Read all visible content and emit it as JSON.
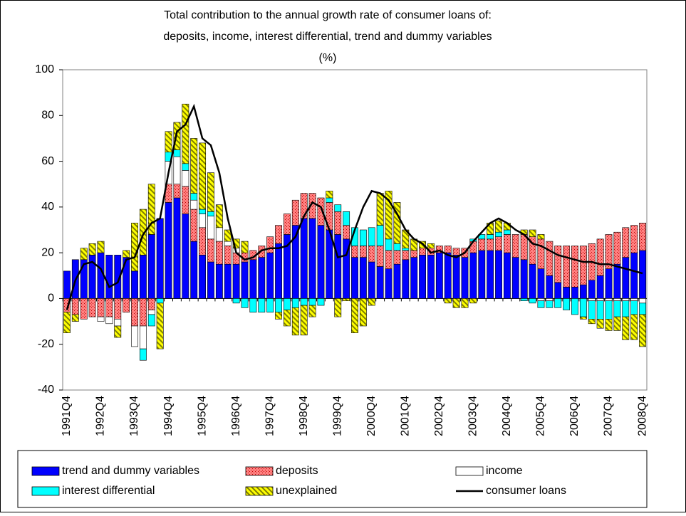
{
  "chart_data": {
    "type": "bar",
    "stacked": true,
    "title": [
      "Total contribution to the annual growth rate of consumer loans of:",
      "deposits, income, interest differential, trend and dummy variables",
      "(%)"
    ],
    "categories": [
      "1991Q4",
      null,
      null,
      null,
      "1992Q4",
      null,
      null,
      null,
      "1993Q4",
      null,
      null,
      null,
      "1994Q4",
      null,
      null,
      null,
      "1995Q4",
      null,
      null,
      null,
      "1996Q4",
      null,
      null,
      null,
      "1997Q4",
      null,
      null,
      null,
      "1998Q4",
      null,
      null,
      null,
      "1999Q4",
      null,
      null,
      null,
      "2000Q4",
      null,
      null,
      null,
      "2001Q4",
      null,
      null,
      null,
      "2002Q4",
      null,
      null,
      null,
      "2003Q4",
      null,
      null,
      null,
      "2004Q4",
      null,
      null,
      null,
      "2005Q4",
      null,
      null,
      null,
      "2006Q4",
      null,
      null,
      null,
      "2007Q4",
      null,
      null,
      null,
      "2008Q4"
    ],
    "ylim": [
      -40,
      100
    ],
    "yticks": [
      -40,
      -20,
      0,
      20,
      40,
      60,
      80,
      100
    ],
    "grid": false,
    "series": [
      {
        "name": "trend and dummy variables",
        "color": "#0000ff",
        "pattern": "solid",
        "values": [
          12,
          17,
          17,
          19,
          20,
          19,
          19,
          18,
          12,
          19,
          28,
          35,
          42,
          44,
          37,
          25,
          19,
          16,
          15,
          15,
          15,
          16,
          17,
          18,
          20,
          24,
          28,
          32,
          35,
          35,
          32,
          30,
          28,
          26,
          18,
          18,
          16,
          14,
          13,
          15,
          17,
          18,
          19,
          19,
          20,
          20,
          19,
          18,
          20,
          21,
          21,
          21,
          20,
          18,
          17,
          15,
          13,
          10,
          7,
          5,
          5,
          6,
          8,
          10,
          13,
          15,
          18,
          20,
          21
        ]
      },
      {
        "name": "deposits",
        "color": "#ff8080",
        "pattern": "dots",
        "values": [
          -6,
          -7,
          -9,
          -8,
          -8,
          -8,
          -9,
          -6,
          -12,
          -12,
          -5,
          0,
          8,
          6,
          12,
          14,
          12,
          10,
          10,
          8,
          5,
          4,
          4,
          5,
          7,
          8,
          9,
          11,
          11,
          11,
          12,
          12,
          10,
          6,
          5,
          5,
          7,
          9,
          8,
          6,
          4,
          3,
          3,
          3,
          3,
          3,
          3,
          4,
          5,
          5,
          5,
          6,
          8,
          10,
          11,
          12,
          13,
          15,
          16,
          18,
          18,
          17,
          16,
          16,
          15,
          14,
          13,
          12,
          12
        ]
      },
      {
        "name": "income",
        "color": "#ffffff",
        "pattern": "solid",
        "values": [
          0,
          0,
          0,
          0,
          -2,
          -3,
          -3,
          0,
          -9,
          -10,
          -2,
          0,
          10,
          12,
          7,
          4,
          6,
          10,
          6,
          2,
          2,
          0,
          0,
          0,
          0,
          0,
          0,
          0,
          0,
          0,
          0,
          0,
          0,
          0,
          0,
          0,
          0,
          0,
          0,
          0,
          0,
          0,
          0,
          0,
          0,
          0,
          0,
          0,
          0,
          0,
          0,
          0,
          0,
          0,
          0,
          0,
          -1,
          -1,
          0,
          0,
          0,
          0,
          -1,
          -1,
          -1,
          -1,
          -1,
          -1,
          -2
        ]
      },
      {
        "name": "interest differential",
        "color": "#00ffff",
        "pattern": "solid",
        "values": [
          0,
          0,
          0,
          0,
          0,
          0,
          0,
          0,
          0,
          -5,
          -5,
          -2,
          4,
          3,
          3,
          3,
          2,
          2,
          0,
          0,
          -2,
          -4,
          -6,
          -6,
          -6,
          -6,
          -5,
          -4,
          -3,
          -3,
          -3,
          2,
          3,
          6,
          8,
          7,
          8,
          9,
          5,
          3,
          1,
          0,
          0,
          0,
          0,
          0,
          0,
          0,
          1,
          2,
          2,
          2,
          2,
          0,
          -1,
          -2,
          -3,
          -3,
          -4,
          -5,
          -7,
          -8,
          -8,
          -8,
          -8,
          -7,
          -7,
          -6,
          -5
        ]
      },
      {
        "name": "unexplained",
        "color": "#ffff00",
        "pattern": "hatch",
        "values": [
          -9,
          -3,
          5,
          5,
          5,
          0,
          -5,
          3,
          21,
          20,
          22,
          -20,
          9,
          12,
          26,
          24,
          29,
          17,
          10,
          5,
          4,
          5,
          0,
          0,
          0,
          -3,
          -7,
          -12,
          -13,
          -5,
          0,
          3,
          -8,
          -1,
          -15,
          -12,
          -3,
          14,
          21,
          18,
          8,
          5,
          3,
          2,
          0,
          -2,
          -4,
          -4,
          -2,
          0,
          5,
          5,
          3,
          0,
          2,
          3,
          2,
          0,
          0,
          0,
          0,
          -1,
          -2,
          -4,
          -5,
          -6,
          -10,
          -11,
          -14
        ]
      },
      {
        "name": "consumer loans",
        "color": "#000000",
        "type": "line",
        "values": [
          -5,
          8,
          15,
          16,
          13,
          5,
          7,
          17,
          18,
          28,
          33,
          35,
          55,
          73,
          76,
          84,
          70,
          67,
          55,
          35,
          20,
          17,
          18,
          21,
          22,
          22,
          23,
          27,
          36,
          42,
          40,
          30,
          18,
          19,
          30,
          40,
          47,
          46,
          43,
          37,
          30,
          26,
          24,
          20,
          21,
          19,
          18,
          20,
          25,
          29,
          33,
          35,
          33,
          30,
          28,
          24,
          23,
          21,
          19,
          18,
          17,
          16,
          16,
          15,
          15,
          14,
          13,
          12,
          11
        ]
      }
    ]
  }
}
